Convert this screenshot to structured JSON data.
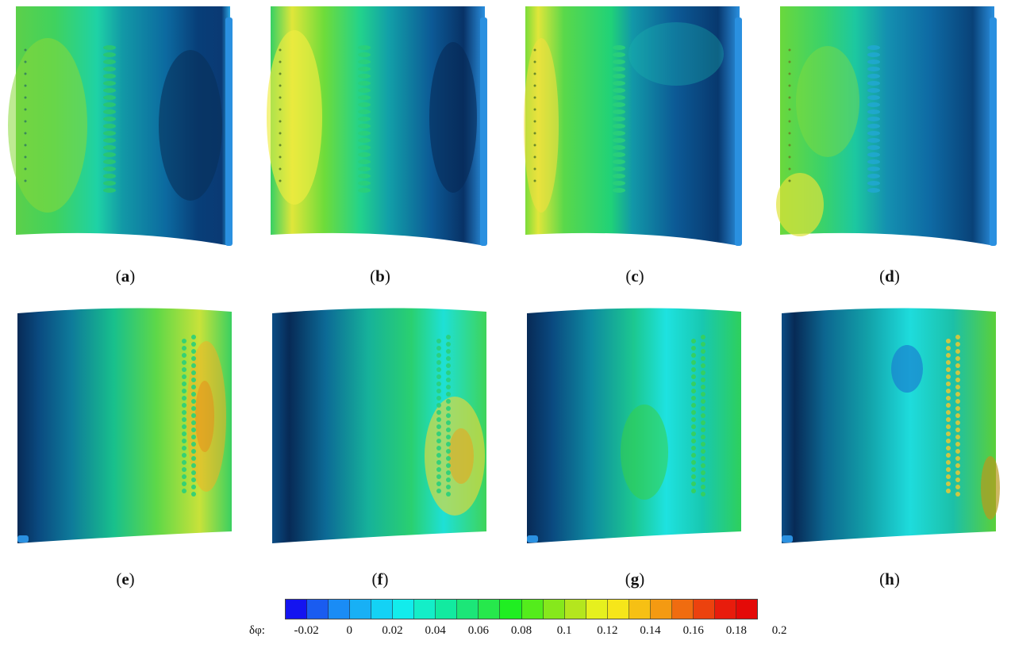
{
  "panels_top": [
    {
      "id": "a",
      "label": "a"
    },
    {
      "id": "b",
      "label": "b"
    },
    {
      "id": "c",
      "label": "c"
    },
    {
      "id": "d",
      "label": "d"
    }
  ],
  "panels_bottom": [
    {
      "id": "e",
      "label": "e"
    },
    {
      "id": "f",
      "label": "f"
    },
    {
      "id": "g",
      "label": "g"
    },
    {
      "id": "h",
      "label": "h"
    }
  ],
  "colorbar": {
    "label": "δφ:",
    "ticks": [
      "-0.02",
      "0",
      "0.02",
      "0.04",
      "0.06",
      "0.08",
      "0.1",
      "0.12",
      "0.14",
      "0.16",
      "0.18",
      "0.2"
    ],
    "colors": [
      "#1414f0",
      "#1a5cf0",
      "#1a8cf5",
      "#18b0f5",
      "#14d2f5",
      "#12ecec",
      "#14eec8",
      "#12eaa0",
      "#1ce678",
      "#26e84c",
      "#20ee22",
      "#54ec1c",
      "#86e81c",
      "#b4e61e",
      "#e6f01e",
      "#f6e61a",
      "#f6c014",
      "#f49a12",
      "#f06c10",
      "#ec420e",
      "#e81c0c",
      "#e40a08"
    ]
  },
  "palette": {
    "dark_blue": "#08305a",
    "mid_blue": "#0e4f86",
    "cyan": "#1fd4e6",
    "green": "#32c84a",
    "yellow": "#e6e33a",
    "orange": "#e8a21e"
  }
}
